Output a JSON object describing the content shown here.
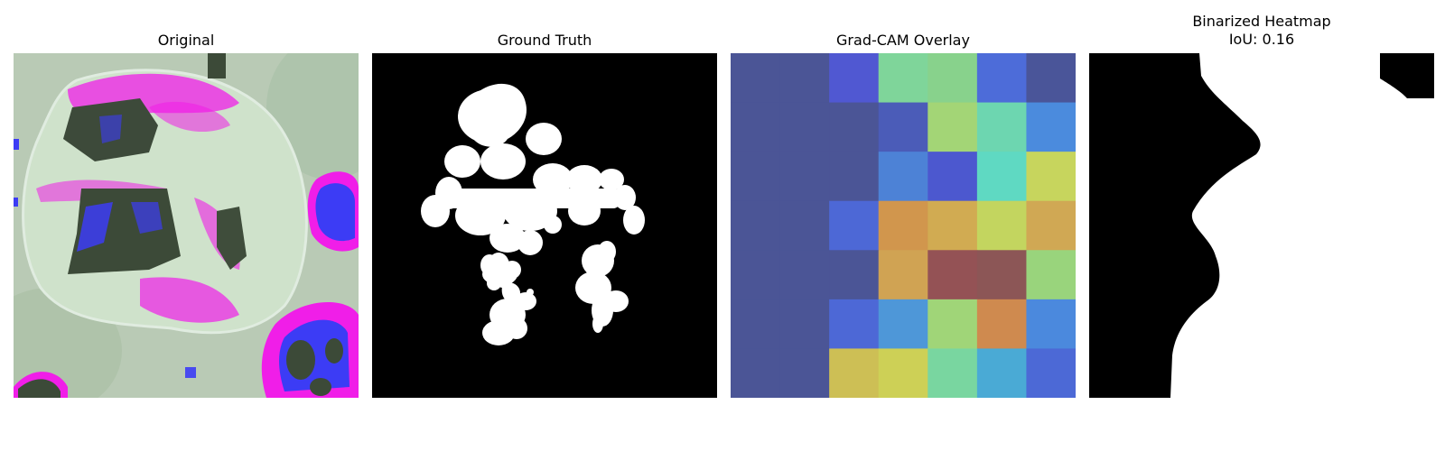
{
  "panels": [
    {
      "title": "Original"
    },
    {
      "title": "Ground Truth"
    },
    {
      "title": "Grad-CAM Overlay"
    },
    {
      "title_line1": "Binarized Heatmap",
      "title_line2": "IoU: 0.16"
    }
  ],
  "metrics": {
    "iou": 0.16
  },
  "gradcam_grid": [
    [
      "#4b5596",
      "#4b5596",
      "#5058d2",
      "#7fd59a",
      "#88d28c",
      "#4d6cd9",
      "#4a5599"
    ],
    [
      "#4b5596",
      "#4b5596",
      "#4b5596",
      "#4b5cb8",
      "#a3d576",
      "#6dd6b0",
      "#4b8bdd"
    ],
    [
      "#4b5596",
      "#4b5596",
      "#4b5596",
      "#4d82d6",
      "#4c58cf",
      "#5fd9c2",
      "#c7d55d"
    ],
    [
      "#4b5596",
      "#4b5596",
      "#4d68d6",
      "#d1964d",
      "#d1ab52",
      "#c3d55f",
      "#d0a854"
    ],
    [
      "#4b5596",
      "#4b5596",
      "#4b5596",
      "#d0a353",
      "#945255",
      "#8c5656",
      "#99d47c"
    ],
    [
      "#4b5596",
      "#4b5596",
      "#4d68d6",
      "#4e97d8",
      "#a0d578",
      "#cf8a4f",
      "#4b89dd"
    ],
    [
      "#4b5596",
      "#4b5596",
      "#cdbf55",
      "#cdd056",
      "#79d6a0",
      "#4aaad5",
      "#4c69d6"
    ]
  ],
  "colors": {
    "leaf_bg": "#b8c9b4",
    "leaf_face": "#cfe3cc",
    "magenta": "#f01ee8",
    "blue": "#3c3cf5",
    "dark_green": "#3c4a38",
    "mask_fg": "#ffffff",
    "mask_bg": "#000000"
  }
}
